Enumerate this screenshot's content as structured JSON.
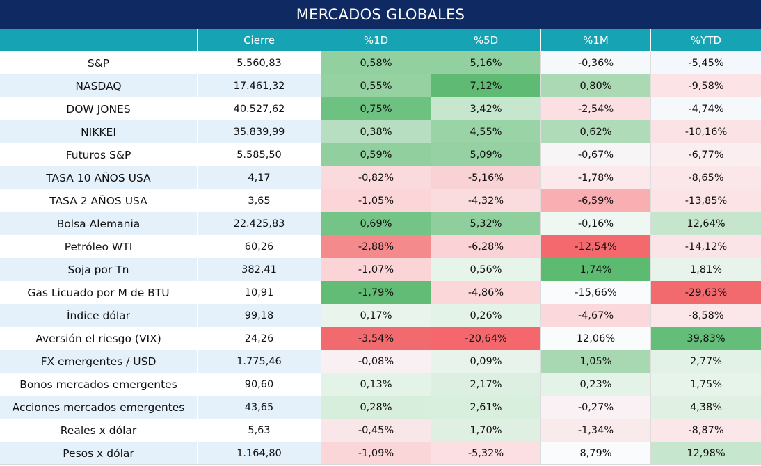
{
  "title": "MERCADOS GLOBALES",
  "columns": [
    "",
    "Cierre",
    "%1D",
    "%5D",
    "%1M",
    "%YTD"
  ],
  "colors": {
    "title_bg": "#0f2a62",
    "header_bg": "#16a3b3",
    "positive_strong": "#5fbb74",
    "negative_strong": "#f0686d"
  },
  "rows": [
    {
      "name": "S&P",
      "cierre": "5.560,83",
      "d1": "0,58%",
      "d5": "5,16%",
      "m1": "-0,36%",
      "ytd": "-5,45%"
    },
    {
      "name": "NASDAQ",
      "cierre": "17.461,32",
      "d1": "0,55%",
      "d5": "7,12%",
      "m1": "0,80%",
      "ytd": "-9,58%"
    },
    {
      "name": "DOW JONES",
      "cierre": "40.527,62",
      "d1": "0,75%",
      "d5": "3,42%",
      "m1": "-2,54%",
      "ytd": "-4,74%"
    },
    {
      "name": "NIKKEI",
      "cierre": "35.839,99",
      "d1": "0,38%",
      "d5": "4,55%",
      "m1": "0,62%",
      "ytd": "-10,16%"
    },
    {
      "name": "Futuros S&P",
      "cierre": "5.585,50",
      "d1": "0,59%",
      "d5": "5,09%",
      "m1": "-0,67%",
      "ytd": "-6,77%"
    },
    {
      "name": "TASA 10 AÑOS USA",
      "cierre": "4,17",
      "d1": "-0,82%",
      "d5": "-5,16%",
      "m1": "-1,78%",
      "ytd": "-8,65%"
    },
    {
      "name": "TASA 2 AÑOS USA",
      "cierre": "3,65",
      "d1": "-1,05%",
      "d5": "-4,32%",
      "m1": "-6,59%",
      "ytd": "-13,85%"
    },
    {
      "name": "Bolsa Alemania",
      "cierre": "22.425,83",
      "d1": "0,69%",
      "d5": "5,32%",
      "m1": "-0,16%",
      "ytd": "12,64%"
    },
    {
      "name": "Petróleo WTI",
      "cierre": "60,26",
      "d1": "-2,88%",
      "d5": "-6,28%",
      "m1": "-12,54%",
      "ytd": "-14,12%"
    },
    {
      "name": "Soja por Tn",
      "cierre": "382,41",
      "d1": "-1,07%",
      "d5": "0,56%",
      "m1": "1,74%",
      "ytd": "1,81%"
    },
    {
      "name": "Gas Licuado por M de BTU",
      "cierre": "10,91",
      "d1": "-1,79%",
      "d5": "-4,86%",
      "m1": "-15,66%",
      "ytd": "-29,63%"
    },
    {
      "name": "Índice dólar",
      "cierre": "99,18",
      "d1": "0,17%",
      "d5": "0,26%",
      "m1": "-4,67%",
      "ytd": "-8,58%"
    },
    {
      "name": "Aversión el riesgo (VIX)",
      "cierre": "24,26",
      "d1": "-3,54%",
      "d5": "-20,64%",
      "m1": "12,06%",
      "ytd": "39,83%"
    },
    {
      "name": "FX emergentes / USD",
      "cierre": "1.775,46",
      "d1": "-0,08%",
      "d5": "0,09%",
      "m1": "1,05%",
      "ytd": "2,77%"
    },
    {
      "name": "Bonos mercados emergentes",
      "cierre": "90,60",
      "d1": "0,13%",
      "d5": "2,17%",
      "m1": "0,23%",
      "ytd": "1,75%"
    },
    {
      "name": "Acciones mercados emergentes",
      "cierre": "43,65",
      "d1": "0,28%",
      "d5": "2,61%",
      "m1": "-0,27%",
      "ytd": "4,38%"
    },
    {
      "name": "Reales x dólar",
      "cierre": "5,63",
      "d1": "-0,45%",
      "d5": "1,70%",
      "m1": "-1,34%",
      "ytd": "-8,87%"
    },
    {
      "name": "Pesos x dólar",
      "cierre": "1.164,80",
      "d1": "-1,09%",
      "d5": "-5,32%",
      "m1": "8,79%",
      "ytd": "12,98%"
    }
  ],
  "cell_colors": [
    [
      "#93d0a0",
      "#93d0a0",
      "#f6f9fb",
      "#f4f7fb"
    ],
    [
      "#96d1a2",
      "#5fbb74",
      "#aad9b4",
      "#fbe3e6"
    ],
    [
      "#6dc181",
      "#c6e6cd",
      "#fbdfe2",
      "#f6f9fb"
    ],
    [
      "#b7dec0",
      "#9ad3a6",
      "#b0dbb9",
      "#fbe2e5"
    ],
    [
      "#91cf9f",
      "#95d1a2",
      "#f8f5f7",
      "#fbeef0"
    ],
    [
      "#fbdadd",
      "#f9d2d5",
      "#fbe9ec",
      "#fbe6e9"
    ],
    [
      "#fbd5d8",
      "#fadcdf",
      "#f9aeb1",
      "#fbe3e6"
    ],
    [
      "#74c487",
      "#8fcf9d",
      "#eef7f1",
      "#c5e6cc"
    ],
    [
      "#f58a8d",
      "#fbd3d6",
      "#f4696d",
      "#fbe4e7"
    ],
    [
      "#fbd4d7",
      "#e7f4ea",
      "#5cba71",
      "#e8f4eb"
    ],
    [
      "#62bc76",
      "#fbd7da",
      "#f9fbfd",
      "#f36a6e"
    ],
    [
      "#e9f5ec",
      "#e4f3e8",
      "#fbd8db",
      "#fbe6e9"
    ],
    [
      "#f16a6e",
      "#f4676c",
      "#f9fbfd",
      "#64bd78"
    ],
    [
      "#f9f0f3",
      "#e8f4eb",
      "#a8d8b2",
      "#e2f2e6"
    ],
    [
      "#e4f3e8",
      "#dcefe1",
      "#e4f3e8",
      "#e7f4ea"
    ],
    [
      "#d8eedd",
      "#d9efde",
      "#f9f1f4",
      "#e0f1e4"
    ],
    [
      "#f9e6e9",
      "#dff0e3",
      "#f9eaec",
      "#fbe6e9"
    ],
    [
      "#fbd6d9",
      "#fbdfe2",
      "#f9fbfd",
      "#c6e6cd"
    ]
  ]
}
